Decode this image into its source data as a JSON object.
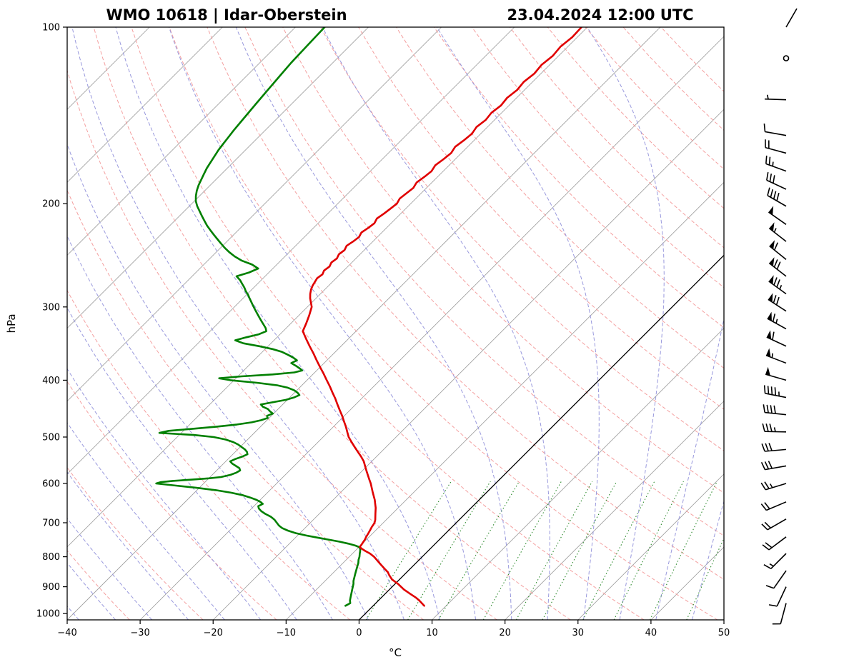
{
  "header": {
    "title_left": "WMO 10618 | Idar-Oberstein",
    "title_right": "23.04.2024 12:00 UTC"
  },
  "axes": {
    "xlabel": "°C",
    "ylabel": "hPa",
    "xlim": [
      -40,
      50
    ],
    "pressure_range_hpa": [
      100,
      1000
    ],
    "x_ticks": {
      "values": [
        -40,
        -30,
        -20,
        -10,
        0,
        10,
        20,
        30,
        40,
        50
      ],
      "labels": [
        "−40",
        "−30",
        "−20",
        "−10",
        "0",
        "10",
        "20",
        "30",
        "40",
        "50"
      ]
    },
    "p_ticks": {
      "values": [
        100,
        200,
        300,
        400,
        500,
        600,
        700,
        800,
        900,
        1000
      ],
      "labels": [
        "100",
        "200",
        "300",
        "400",
        "500",
        "600",
        "700",
        "800",
        "900",
        "1000"
      ]
    }
  },
  "chart_data": {
    "type": "skewt_logp_sounding",
    "station": "WMO 10618 Idar-Oberstein",
    "valid_time": "23.04.2024 12:00 UTC",
    "pressure_unit": "hPa",
    "temperature_unit": "°C",
    "wind_unit": "kt",
    "colors": {
      "temperature": "#e00000",
      "dewpoint": "#008000"
    },
    "temperature_profile": [
      [
        970,
        7.0
      ],
      [
        950,
        5.6
      ],
      [
        940,
        4.8
      ],
      [
        925,
        3.4
      ],
      [
        910,
        2.0
      ],
      [
        900,
        1.2
      ],
      [
        890,
        0.4
      ],
      [
        875,
        -1.0
      ],
      [
        860,
        -2.0
      ],
      [
        850,
        -2.6
      ],
      [
        840,
        -3.4
      ],
      [
        825,
        -4.6
      ],
      [
        810,
        -5.8
      ],
      [
        800,
        -6.6
      ],
      [
        790,
        -7.6
      ],
      [
        782,
        -8.6
      ],
      [
        776,
        -9.3
      ],
      [
        770,
        -9.9
      ],
      [
        762,
        -10.0
      ],
      [
        755,
        -10.1
      ],
      [
        748,
        -10.2
      ],
      [
        740,
        -10.4
      ],
      [
        730,
        -10.6
      ],
      [
        720,
        -10.8
      ],
      [
        712,
        -11.0
      ],
      [
        705,
        -11.1
      ],
      [
        700,
        -11.2
      ],
      [
        692,
        -11.5
      ],
      [
        684,
        -11.9
      ],
      [
        676,
        -12.3
      ],
      [
        668,
        -12.7
      ],
      [
        660,
        -13.1
      ],
      [
        650,
        -13.7
      ],
      [
        640,
        -14.3
      ],
      [
        630,
        -15.0
      ],
      [
        620,
        -15.7
      ],
      [
        610,
        -16.4
      ],
      [
        600,
        -17.1
      ],
      [
        590,
        -17.9
      ],
      [
        580,
        -18.7
      ],
      [
        570,
        -19.5
      ],
      [
        560,
        -20.3
      ],
      [
        550,
        -21.1
      ],
      [
        540,
        -22.1
      ],
      [
        530,
        -23.2
      ],
      [
        520,
        -24.3
      ],
      [
        510,
        -25.4
      ],
      [
        500,
        -26.5
      ],
      [
        490,
        -27.4
      ],
      [
        480,
        -28.3
      ],
      [
        470,
        -29.3
      ],
      [
        460,
        -30.3
      ],
      [
        450,
        -31.4
      ],
      [
        440,
        -32.5
      ],
      [
        430,
        -33.6
      ],
      [
        420,
        -34.8
      ],
      [
        410,
        -36.0
      ],
      [
        400,
        -37.3
      ],
      [
        390,
        -38.6
      ],
      [
        380,
        -40.0
      ],
      [
        370,
        -41.4
      ],
      [
        360,
        -42.8
      ],
      [
        350,
        -44.3
      ],
      [
        340,
        -45.8
      ],
      [
        330,
        -47.3
      ],
      [
        320,
        -47.9
      ],
      [
        310,
        -48.6
      ],
      [
        300,
        -49.4
      ],
      [
        295,
        -50.1
      ],
      [
        290,
        -50.8
      ],
      [
        285,
        -51.4
      ],
      [
        280,
        -51.9
      ],
      [
        276,
        -52.2
      ],
      [
        272,
        -52.4
      ],
      [
        268,
        -52.6
      ],
      [
        264,
        -52.4
      ],
      [
        260,
        -52.7
      ],
      [
        256,
        -52.5
      ],
      [
        252,
        -52.8
      ],
      [
        248,
        -52.6
      ],
      [
        244,
        -52.9
      ],
      [
        240,
        -52.7
      ],
      [
        236,
        -53.0
      ],
      [
        232,
        -52.7
      ],
      [
        228,
        -52.5
      ],
      [
        224,
        -52.8
      ],
      [
        220,
        -52.5
      ],
      [
        216,
        -52.3
      ],
      [
        212,
        -52.6
      ],
      [
        208,
        -52.3
      ],
      [
        204,
        -52.1
      ],
      [
        200,
        -51.9
      ],
      [
        196,
        -52.2
      ],
      [
        192,
        -52.0
      ],
      [
        188,
        -51.8
      ],
      [
        184,
        -52.1
      ],
      [
        180,
        -51.8
      ],
      [
        176,
        -51.6
      ],
      [
        172,
        -51.9
      ],
      [
        168,
        -51.6
      ],
      [
        164,
        -51.4
      ],
      [
        160,
        -51.7
      ],
      [
        156,
        -51.4
      ],
      [
        152,
        -51.2
      ],
      [
        148,
        -51.5
      ],
      [
        144,
        -51.2
      ],
      [
        140,
        -51.4
      ],
      [
        136,
        -51.1
      ],
      [
        132,
        -51.3
      ],
      [
        128,
        -51.0
      ],
      [
        124,
        -51.2
      ],
      [
        120,
        -50.9
      ],
      [
        116,
        -51.1
      ],
      [
        112,
        -50.8
      ],
      [
        108,
        -51.0
      ],
      [
        104,
        -50.7
      ],
      [
        100,
        -50.8
      ]
    ],
    "dewpoint_profile": [
      [
        970,
        -3.8
      ],
      [
        960,
        -3.5
      ],
      [
        950,
        -3.9
      ],
      [
        940,
        -4.2
      ],
      [
        930,
        -4.5
      ],
      [
        920,
        -4.8
      ],
      [
        910,
        -5.1
      ],
      [
        900,
        -5.4
      ],
      [
        890,
        -5.7
      ],
      [
        880,
        -6.1
      ],
      [
        870,
        -6.4
      ],
      [
        860,
        -6.7
      ],
      [
        850,
        -7.0
      ],
      [
        840,
        -7.3
      ],
      [
        830,
        -7.6
      ],
      [
        820,
        -7.9
      ],
      [
        810,
        -8.3
      ],
      [
        800,
        -8.6
      ],
      [
        790,
        -9.0
      ],
      [
        782,
        -9.3
      ],
      [
        775,
        -9.6
      ],
      [
        770,
        -10.0
      ],
      [
        765,
        -10.8
      ],
      [
        760,
        -11.9
      ],
      [
        754,
        -13.4
      ],
      [
        748,
        -15.2
      ],
      [
        742,
        -17.0
      ],
      [
        736,
        -18.8
      ],
      [
        729,
        -20.6
      ],
      [
        722,
        -22.0
      ],
      [
        715,
        -23.1
      ],
      [
        708,
        -23.9
      ],
      [
        700,
        -24.6
      ],
      [
        692,
        -25.3
      ],
      [
        684,
        -26.2
      ],
      [
        676,
        -27.4
      ],
      [
        669,
        -28.3
      ],
      [
        662,
        -29.0
      ],
      [
        656,
        -29.4
      ],
      [
        650,
        -29.1
      ],
      [
        645,
        -29.7
      ],
      [
        640,
        -30.5
      ],
      [
        634,
        -31.7
      ],
      [
        628,
        -33.1
      ],
      [
        622,
        -35.0
      ],
      [
        616,
        -37.4
      ],
      [
        610,
        -40.5
      ],
      [
        605,
        -43.5
      ],
      [
        600,
        -46.5
      ],
      [
        597,
        -46.1
      ],
      [
        594,
        -44.6
      ],
      [
        591,
        -42.1
      ],
      [
        588,
        -40.0
      ],
      [
        585,
        -38.5
      ],
      [
        580,
        -37.5
      ],
      [
        575,
        -37.0
      ],
      [
        570,
        -36.8
      ],
      [
        565,
        -37.2
      ],
      [
        560,
        -38.0
      ],
      [
        555,
        -38.8
      ],
      [
        550,
        -39.4
      ],
      [
        545,
        -39.0
      ],
      [
        540,
        -38.4
      ],
      [
        535,
        -38.0
      ],
      [
        530,
        -38.4
      ],
      [
        525,
        -39.0
      ],
      [
        520,
        -39.8
      ],
      [
        515,
        -40.6
      ],
      [
        510,
        -41.6
      ],
      [
        505,
        -43.0
      ],
      [
        500,
        -45.0
      ],
      [
        496,
        -48.0
      ],
      [
        492,
        -53.0
      ],
      [
        488,
        -52.0
      ],
      [
        484,
        -49.0
      ],
      [
        480,
        -46.0
      ],
      [
        476,
        -43.5
      ],
      [
        472,
        -41.8
      ],
      [
        468,
        -40.8
      ],
      [
        464,
        -40.2
      ],
      [
        460,
        -40.6
      ],
      [
        456,
        -40.1
      ],
      [
        452,
        -40.8
      ],
      [
        448,
        -41.4
      ],
      [
        444,
        -42.4
      ],
      [
        440,
        -43.0
      ],
      [
        436,
        -41.6
      ],
      [
        432,
        -40.2
      ],
      [
        428,
        -39.4
      ],
      [
        424,
        -39.0
      ],
      [
        420,
        -39.6
      ],
      [
        416,
        -40.4
      ],
      [
        412,
        -41.6
      ],
      [
        408,
        -43.4
      ],
      [
        404,
        -46.5
      ],
      [
        400,
        -50.5
      ],
      [
        397,
        -52.3
      ],
      [
        394,
        -49.5
      ],
      [
        391,
        -45.5
      ],
      [
        388,
        -42.8
      ],
      [
        385,
        -42.0
      ],
      [
        382,
        -42.6
      ],
      [
        378,
        -43.5
      ],
      [
        374,
        -44.5
      ],
      [
        370,
        -44.1
      ],
      [
        366,
        -45.0
      ],
      [
        362,
        -46.1
      ],
      [
        358,
        -47.3
      ],
      [
        354,
        -49.0
      ],
      [
        350,
        -51.2
      ],
      [
        346,
        -53.8
      ],
      [
        342,
        -55.3
      ],
      [
        338,
        -54.2
      ],
      [
        334,
        -52.9
      ],
      [
        330,
        -52.3
      ],
      [
        326,
        -52.8
      ],
      [
        322,
        -53.5
      ],
      [
        318,
        -54.2
      ],
      [
        314,
        -54.9
      ],
      [
        310,
        -55.6
      ],
      [
        306,
        -56.3
      ],
      [
        302,
        -57.0
      ],
      [
        298,
        -57.7
      ],
      [
        294,
        -58.4
      ],
      [
        290,
        -59.1
      ],
      [
        286,
        -59.8
      ],
      [
        282,
        -60.6
      ],
      [
        278,
        -61.3
      ],
      [
        274,
        -62.1
      ],
      [
        270,
        -62.9
      ],
      [
        266,
        -63.9
      ],
      [
        262,
        -62.7
      ],
      [
        258,
        -62.0
      ],
      [
        254,
        -63.4
      ],
      [
        250,
        -65.4
      ],
      [
        246,
        -66.9
      ],
      [
        242,
        -68.2
      ],
      [
        238,
        -69.4
      ],
      [
        234,
        -70.5
      ],
      [
        230,
        -71.6
      ],
      [
        226,
        -72.7
      ],
      [
        222,
        -73.8
      ],
      [
        218,
        -74.9
      ],
      [
        214,
        -75.9
      ],
      [
        210,
        -76.9
      ],
      [
        206,
        -77.9
      ],
      [
        202,
        -78.9
      ],
      [
        198,
        -79.8
      ],
      [
        194,
        -80.5
      ],
      [
        190,
        -81.1
      ],
      [
        186,
        -81.6
      ],
      [
        182,
        -82.0
      ],
      [
        178,
        -82.4
      ],
      [
        174,
        -82.8
      ],
      [
        170,
        -83.1
      ],
      [
        166,
        -83.4
      ],
      [
        162,
        -83.7
      ],
      [
        158,
        -83.9
      ],
      [
        154,
        -84.1
      ],
      [
        150,
        -84.3
      ],
      [
        145,
        -84.5
      ],
      [
        140,
        -84.7
      ],
      [
        135,
        -84.9
      ],
      [
        130,
        -85.1
      ],
      [
        125,
        -85.3
      ],
      [
        120,
        -85.5
      ],
      [
        115,
        -85.7
      ],
      [
        110,
        -85.8
      ],
      [
        105,
        -85.9
      ],
      [
        100,
        -86.0
      ]
    ],
    "winds": [
      [
        960,
        195,
        8
      ],
      [
        900,
        205,
        10
      ],
      [
        845,
        215,
        12
      ],
      [
        790,
        225,
        15
      ],
      [
        740,
        233,
        18
      ],
      [
        690,
        240,
        20
      ],
      [
        645,
        247,
        22
      ],
      [
        600,
        253,
        25
      ],
      [
        560,
        260,
        28
      ],
      [
        525,
        265,
        32
      ],
      [
        490,
        271,
        35
      ],
      [
        458,
        276,
        40
      ],
      [
        428,
        281,
        45
      ],
      [
        400,
        286,
        50
      ],
      [
        374,
        291,
        55
      ],
      [
        350,
        295,
        60
      ],
      [
        327,
        299,
        65
      ],
      [
        305,
        303,
        70
      ],
      [
        285,
        306,
        75
      ],
      [
        266,
        308,
        70
      ],
      [
        249,
        309,
        60
      ],
      [
        232,
        308,
        55
      ],
      [
        217,
        305,
        50
      ],
      [
        202,
        300,
        40
      ],
      [
        189,
        295,
        32
      ],
      [
        176,
        290,
        25
      ],
      [
        164,
        285,
        18
      ],
      [
        153,
        280,
        12
      ],
      [
        133,
        272,
        7
      ],
      [
        113,
        0,
        0
      ],
      [
        100,
        30,
        2
      ]
    ],
    "reference_lines": {
      "isotherms": {
        "start": -110,
        "end": 50,
        "step": 10,
        "color": "#999999",
        "zero_color": "#000000"
      },
      "dry_adiabats": {
        "theta_start": 230,
        "theta_end": 450,
        "step": 10,
        "color": "#f4a0a0"
      },
      "moist_adiabats": {
        "t0_start": -40,
        "t0_end": 45,
        "step": 5,
        "color": "#9999dd"
      },
      "mixing_ratio": {
        "values_g_kg": [
          4,
          6,
          8,
          12,
          16,
          20,
          28,
          36,
          48,
          64
        ],
        "p_top": 595,
        "color": "#2e8b2e"
      }
    }
  }
}
